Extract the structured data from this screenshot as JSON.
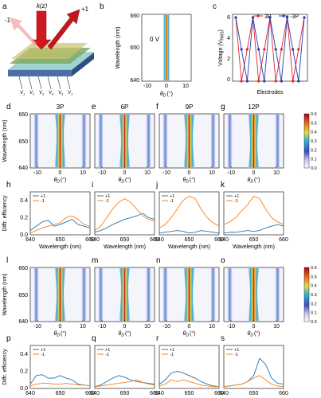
{
  "panel_letters": [
    "a",
    "b",
    "c",
    "d",
    "e",
    "f",
    "g",
    "h",
    "i",
    "j",
    "k",
    "l",
    "m",
    "n",
    "o",
    "p",
    "q",
    "r",
    "s"
  ],
  "panel_a": {
    "kz_label": "k(z)",
    "order_minus": "-1",
    "order_plus": "+1",
    "voltage_labels": [
      "V",
      "V",
      "V",
      "V",
      "V",
      "V"
    ],
    "voltage_subscripts": [
      "1",
      "2",
      "3",
      "4",
      "5",
      "1"
    ]
  },
  "panel_b": {
    "ylabel": "Wavelength (nm)",
    "xlabel": "θ",
    "xlabel_sub": "D",
    "xlabel_unit": "(°)",
    "annotation": "0 V",
    "yticks": [
      "660",
      "650",
      "640"
    ],
    "xticks": [
      "-10",
      "0",
      "10"
    ]
  },
  "heat_xlabel": {
    "symbol": "θ",
    "sub": "D",
    "unit": "(°)"
  },
  "heat_ylabel": "Wavelength (nm)",
  "heat_yticks": [
    "660",
    "650",
    "640"
  ],
  "heat_xticks": [
    "-10",
    "0",
    "10"
  ],
  "row_d_titles": [
    "3P",
    "6P",
    "9P",
    "12P"
  ],
  "colorbar_ticks": [
    "0.6",
    "0.5",
    "0.4",
    "0.3",
    "0.2",
    "0.1",
    "0.0"
  ],
  "line_ylabel": "Diffr. efficiency",
  "line_xlabel": "Wavelength (nm)",
  "line_yticks": [
    "0.4",
    "0.2",
    "0.0"
  ],
  "line_xticks": [
    "640",
    "650",
    "660"
  ],
  "legend": [
    "+1",
    "-1"
  ],
  "colors": {
    "plus1": "#1f77b4",
    "minus1": "#ff7f0e",
    "red": "#e8202a",
    "blue": "#1f3fb4"
  },
  "chart_data": [
    {
      "panel": "c",
      "type": "line",
      "xlabel": "Electrodes",
      "ylabel": "Voltage (V",
      "ylabel_sub": "RMS",
      "ylabel_end": ")",
      "ylim": [
        0,
        6
      ],
      "yticks": [
        "0",
        "2",
        "4",
        "6"
      ],
      "x": [
        1,
        2,
        3,
        4,
        5,
        6,
        7,
        8,
        9,
        10,
        11,
        12,
        13
      ],
      "series": [
        {
          "name": "3P",
          "color": "#e8202a",
          "values": [
            6,
            0,
            3,
            6,
            0,
            3,
            6,
            0,
            3,
            6,
            0,
            3,
            6
          ]
        },
        {
          "name": "-3P",
          "color": "#1f3fb4",
          "values": [
            6,
            3,
            0,
            6,
            3,
            0,
            6,
            3,
            0,
            6,
            3,
            0,
            6
          ]
        }
      ]
    },
    {
      "panel": "h",
      "type": "line",
      "xlim": [
        640,
        660
      ],
      "ylim": [
        0,
        0.5
      ],
      "x": [
        640,
        642,
        644,
        646,
        648,
        650,
        652,
        654,
        656,
        658,
        660
      ],
      "series": [
        {
          "name": "+1",
          "values": [
            0.05,
            0.1,
            0.15,
            0.17,
            0.1,
            0.12,
            0.15,
            0.18,
            0.12,
            0.1,
            0.08
          ]
        },
        {
          "name": "-1",
          "values": [
            0.02,
            0.05,
            0.08,
            0.1,
            0.12,
            0.14,
            0.2,
            0.22,
            0.18,
            0.12,
            0.1
          ]
        }
      ]
    },
    {
      "panel": "i",
      "type": "line",
      "xlim": [
        640,
        660
      ],
      "ylim": [
        0,
        0.5
      ],
      "x": [
        640,
        642,
        644,
        646,
        648,
        650,
        652,
        654,
        656,
        658,
        660
      ],
      "series": [
        {
          "name": "+1",
          "values": [
            0.03,
            0.05,
            0.08,
            0.12,
            0.15,
            0.18,
            0.2,
            0.22,
            0.25,
            0.2,
            0.18
          ]
        },
        {
          "name": "-1",
          "values": [
            0.05,
            0.1,
            0.2,
            0.3,
            0.38,
            0.42,
            0.38,
            0.3,
            0.22,
            0.18,
            0.16
          ]
        }
      ]
    },
    {
      "panel": "j",
      "type": "line",
      "xlim": [
        640,
        660
      ],
      "ylim": [
        0,
        0.5
      ],
      "x": [
        640,
        642,
        644,
        646,
        648,
        650,
        652,
        654,
        656,
        658,
        660
      ],
      "series": [
        {
          "name": "+1",
          "values": [
            0.02,
            0.03,
            0.04,
            0.05,
            0.04,
            0.02,
            0.03,
            0.05,
            0.04,
            0.03,
            0.02
          ]
        },
        {
          "name": "-1",
          "values": [
            0.08,
            0.12,
            0.2,
            0.3,
            0.4,
            0.45,
            0.42,
            0.3,
            0.2,
            0.14,
            0.1
          ]
        }
      ]
    },
    {
      "panel": "k",
      "type": "line",
      "xlim": [
        640,
        660
      ],
      "ylim": [
        0,
        0.5
      ],
      "x": [
        640,
        642,
        644,
        646,
        648,
        650,
        652,
        654,
        656,
        658,
        660
      ],
      "series": [
        {
          "name": "+1",
          "values": [
            0.02,
            0.03,
            0.03,
            0.04,
            0.05,
            0.04,
            0.05,
            0.08,
            0.1,
            0.12,
            0.1
          ]
        },
        {
          "name": "-1",
          "values": [
            0.12,
            0.15,
            0.2,
            0.28,
            0.35,
            0.45,
            0.42,
            0.3,
            0.2,
            0.15,
            0.12
          ]
        }
      ]
    },
    {
      "panel": "p",
      "type": "line",
      "xlim": [
        640,
        660
      ],
      "ylim": [
        0,
        0.5
      ],
      "x": [
        640,
        642,
        644,
        646,
        648,
        650,
        652,
        654,
        656,
        658,
        660
      ],
      "series": [
        {
          "name": "+1",
          "values": [
            0.05,
            0.15,
            0.16,
            0.12,
            0.12,
            0.15,
            0.12,
            0.1,
            0.05,
            0.04,
            0.03
          ]
        },
        {
          "name": "-1",
          "values": [
            0.03,
            0.05,
            0.06,
            0.06,
            0.05,
            0.05,
            0.06,
            0.05,
            0.04,
            0.04,
            0.03
          ]
        }
      ]
    },
    {
      "panel": "q",
      "type": "line",
      "xlim": [
        640,
        660
      ],
      "ylim": [
        0,
        0.5
      ],
      "x": [
        640,
        642,
        644,
        646,
        648,
        650,
        652,
        654,
        656,
        658,
        660
      ],
      "series": [
        {
          "name": "+1",
          "values": [
            0.02,
            0.04,
            0.08,
            0.12,
            0.15,
            0.13,
            0.1,
            0.08,
            0.07,
            0.06,
            0.05
          ]
        },
        {
          "name": "-1",
          "values": [
            0.02,
            0.03,
            0.04,
            0.05,
            0.06,
            0.07,
            0.08,
            0.1,
            0.07,
            0.05,
            0.04
          ]
        }
      ]
    },
    {
      "panel": "r",
      "type": "line",
      "xlim": [
        640,
        660
      ],
      "ylim": [
        0,
        0.5
      ],
      "x": [
        640,
        642,
        644,
        646,
        648,
        650,
        652,
        654,
        656,
        658,
        660
      ],
      "series": [
        {
          "name": "+1",
          "values": [
            0.05,
            0.1,
            0.18,
            0.2,
            0.18,
            0.15,
            0.12,
            0.08,
            0.05,
            0.03,
            0.02
          ]
        },
        {
          "name": "-1",
          "values": [
            0.03,
            0.05,
            0.1,
            0.08,
            0.1,
            0.08,
            0.06,
            0.04,
            0.03,
            0.02,
            0.02
          ]
        }
      ]
    },
    {
      "panel": "s",
      "type": "line",
      "xlim": [
        640,
        660
      ],
      "ylim": [
        0,
        0.5
      ],
      "x": [
        640,
        642,
        644,
        646,
        648,
        650,
        652,
        654,
        656,
        658,
        660
      ],
      "series": [
        {
          "name": "+1",
          "values": [
            0.02,
            0.03,
            0.04,
            0.05,
            0.08,
            0.15,
            0.35,
            0.28,
            0.12,
            0.06,
            0.05
          ]
        },
        {
          "name": "-1",
          "values": [
            0.02,
            0.03,
            0.04,
            0.05,
            0.08,
            0.12,
            0.15,
            0.1,
            0.05,
            0.03,
            0.02
          ]
        }
      ]
    }
  ]
}
